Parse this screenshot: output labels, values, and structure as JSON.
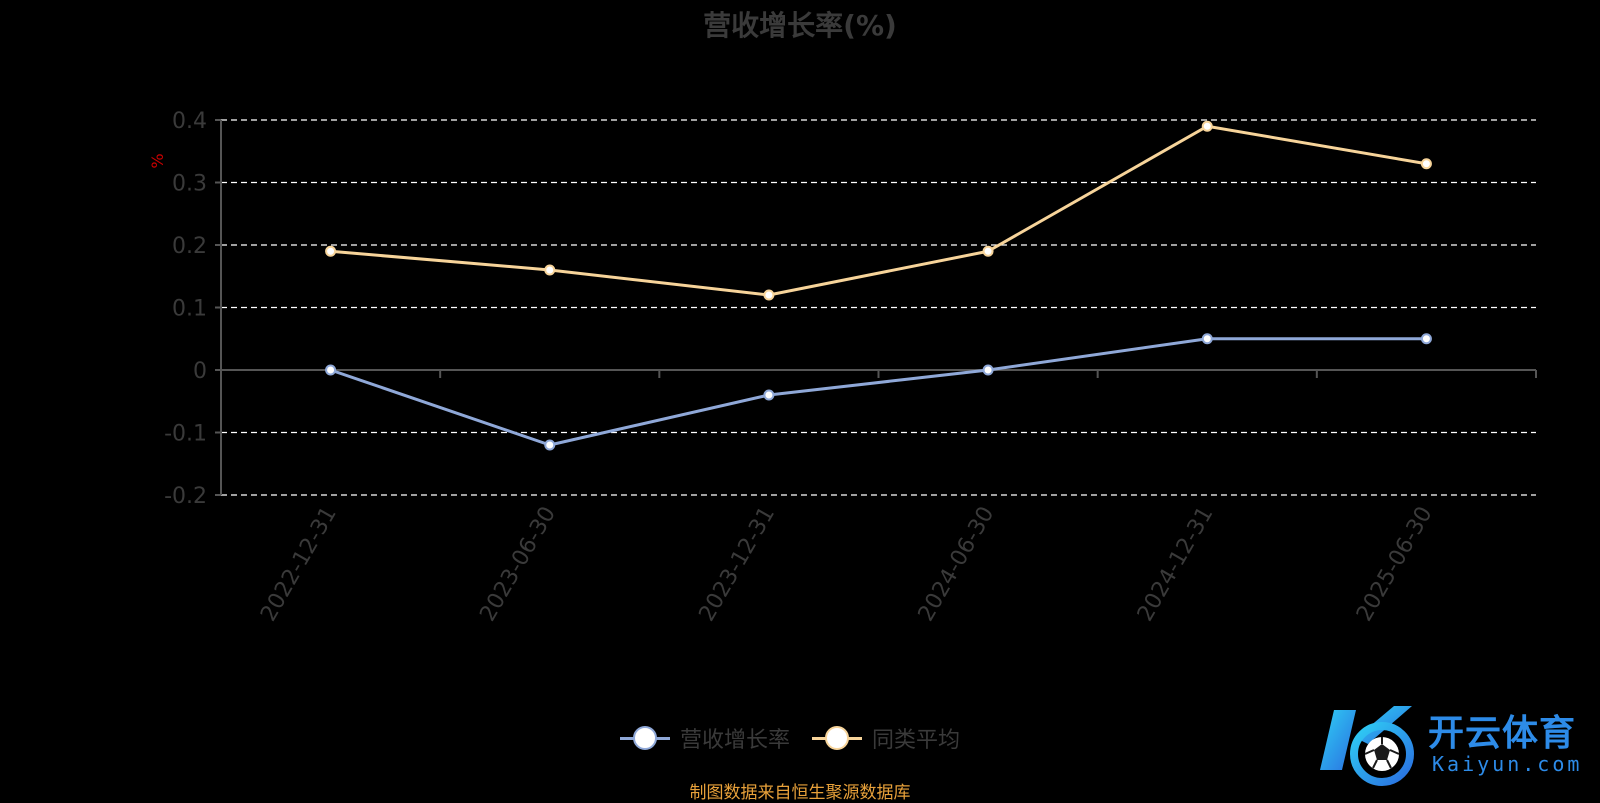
{
  "chart_data": {
    "type": "line",
    "title": "营收增长率(%)",
    "ylabel": "%",
    "xlabel": "",
    "categories": [
      "2022-12-31",
      "2023-06-30",
      "2023-12-31",
      "2024-06-30",
      "2024-12-31",
      "2025-06-30"
    ],
    "ylim": [
      -0.2,
      0.4
    ],
    "yticks": [
      0.4,
      0.3,
      0.2,
      0.1,
      0,
      -0.1,
      -0.2
    ],
    "ytick_labels": [
      "0.4",
      "0.3",
      "0.2",
      "0.1",
      "0",
      "-0.1",
      "-0.2"
    ],
    "grid": true,
    "legend_position": "bottom",
    "series": [
      {
        "name": "营收增长率",
        "values": [
          0,
          -0.12,
          -0.04,
          0,
          0.05,
          0.05
        ],
        "color": "#8fa8d8"
      },
      {
        "name": "同类平均",
        "values": [
          0.19,
          0.16,
          0.12,
          0.19,
          0.39,
          0.33
        ],
        "color": "#f7d49a"
      }
    ],
    "source": "制图数据来自恒生聚源数据库"
  },
  "colors": {
    "background": "#000000",
    "axis": "#555555",
    "grid": "#ffffff",
    "tick_label": "#3a3a3a",
    "ylabel": "#cc0000",
    "source": "#e8a13a",
    "logo": "#2d8be8"
  },
  "logo": {
    "icon": "kaiyun-logo-icon",
    "text_cn": "开云体育",
    "text_en": "Kaiyun.com"
  }
}
